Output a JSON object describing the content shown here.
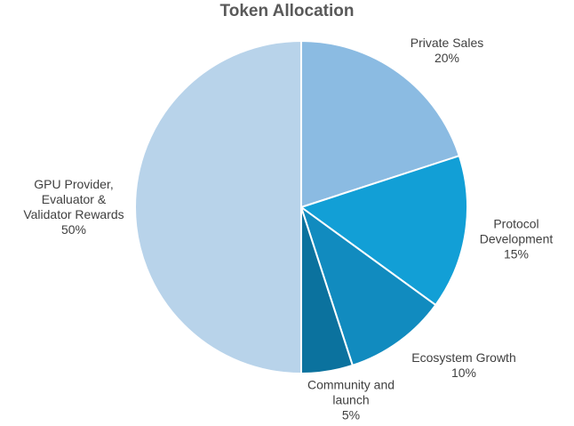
{
  "chart_data": {
    "type": "pie",
    "title": "Token Allocation",
    "categories": [
      "Private Sales",
      "Protocol\nDevelopment",
      "Ecosystem Growth",
      "Community and\nlaunch",
      "GPU Provider,\nEvaluator &\nValidator Rewards"
    ],
    "values": [
      20,
      15,
      10,
      5,
      50
    ],
    "value_labels": [
      "20%",
      "15%",
      "10%",
      "5%",
      "50%"
    ],
    "colors": [
      "#8bbbe2",
      "#129fd6",
      "#118bbf",
      "#0b729e",
      "#b8d3ea"
    ],
    "legend": "none",
    "start_angle": "12 o'clock",
    "direction": "clockwise"
  }
}
